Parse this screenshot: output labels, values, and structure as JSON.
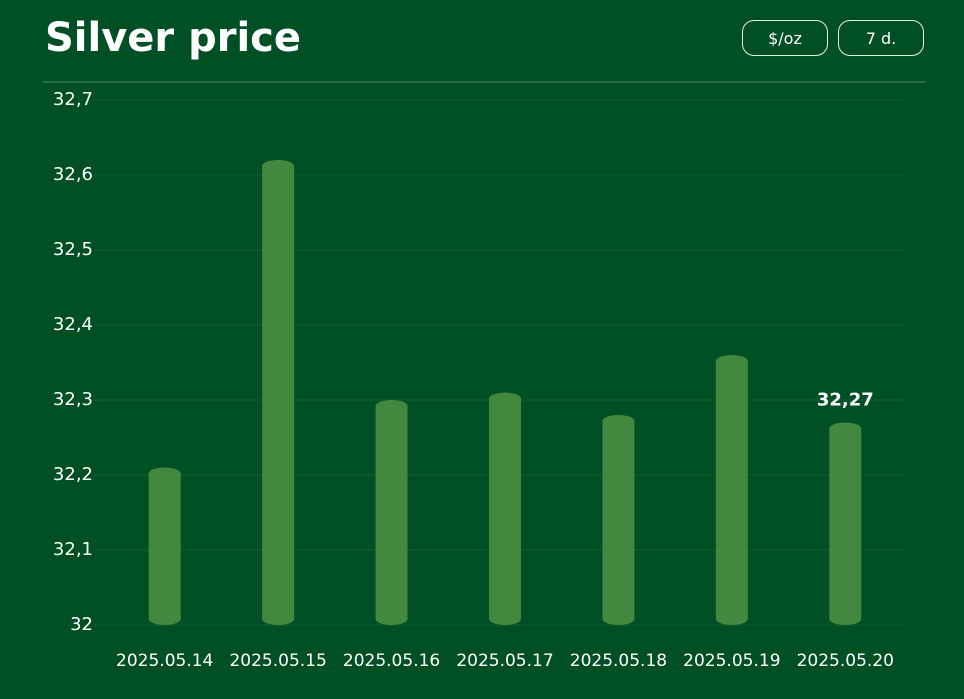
{
  "chart_data": {
    "type": "bar",
    "title": "Silver price",
    "categories": [
      "2025.05.14",
      "2025.05.15",
      "2025.05.16",
      "2025.05.17",
      "2025.05.18",
      "2025.05.19",
      "2025.05.20"
    ],
    "values": [
      32.21,
      32.62,
      32.3,
      32.31,
      32.28,
      32.36,
      32.27
    ],
    "value_labels": [
      null,
      null,
      null,
      null,
      null,
      null,
      "32,27"
    ],
    "color": "#43883f",
    "ylim": [
      32,
      32.7
    ],
    "yticks": [
      32,
      {
        "value": 32.1,
        "label": "32,1"
      },
      {
        "value": 32.2,
        "label": "32,2"
      },
      {
        "value": 32.3,
        "label": "32,3"
      },
      {
        "value": 32.4,
        "label": "32,4"
      },
      {
        "value": 32.5,
        "label": "32,5"
      },
      {
        "value": 32.6,
        "label": "32,6"
      },
      {
        "value": 32.7,
        "label": "32,7"
      }
    ],
    "grid": true
  },
  "buttons": [
    "$/oz",
    "7 d."
  ]
}
